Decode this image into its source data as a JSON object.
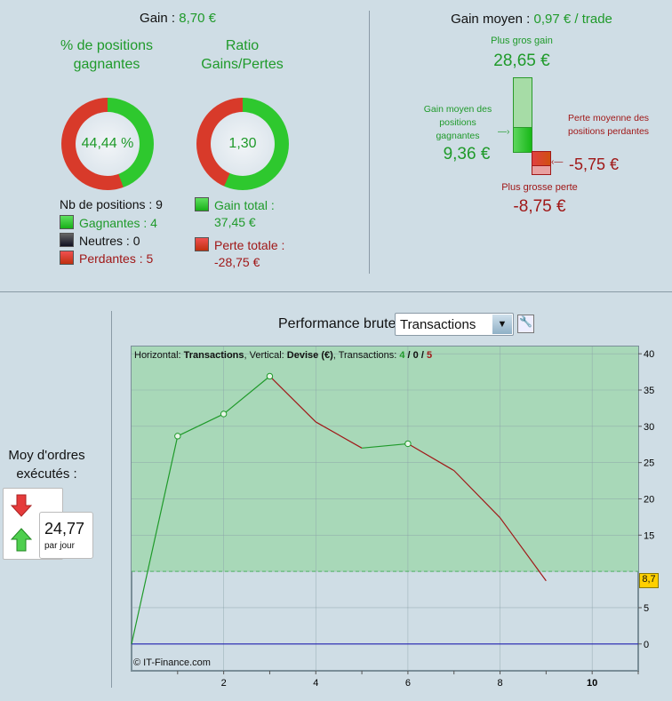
{
  "top_left": {
    "gain_label": "Gain :",
    "gain_value": "8,70 €",
    "win_pct_title": "% de positions gagnantes",
    "win_pct_value": "44,44 %",
    "win_pct_fraction": 0.4444,
    "ratio_title": "Ratio Gains/Pertes",
    "ratio_value": "1,30",
    "ratio_gain_fraction": 0.5657,
    "nb_positions": "Nb de positions : 9",
    "gagnantes": "Gagnantes : 4",
    "neutres": "Neutres : 0",
    "perdantes": "Perdantes : 5",
    "gain_total_label": "Gain total :",
    "gain_total_value": "37,45 €",
    "perte_totale_label": "Perte totale :",
    "perte_totale_value": "-28,75 €"
  },
  "top_right": {
    "gain_moyen_label": "Gain moyen :",
    "gain_moyen_value": "0,97 € / trade",
    "plus_gros_gain_label": "Plus gros gain",
    "plus_gros_gain_value": "28,65 €",
    "gain_moyen_gagnantes_label": "Gain moyen des positions gagnantes",
    "gain_moyen_gagnantes_value": "9,36 €",
    "perte_moyenne_label": "Perte moyenne des positions perdantes",
    "perte_moyenne_value": "-5,75 €",
    "plus_grosse_perte_label": "Plus grosse perte",
    "plus_grosse_perte_value": "-8,75 €"
  },
  "orders": {
    "label": "Moy d'ordres exécutés :",
    "value": "24,77",
    "unit": "par jour"
  },
  "perf": {
    "label": "Performance brute",
    "select_value": "Transactions"
  },
  "chart_data": {
    "type": "line",
    "info": {
      "h_label": "Horizontal: ",
      "h_value": "Transactions",
      "v_label": ", Vertical: ",
      "v_value": "Devise (€)",
      "t_label": ", Transactions: ",
      "wins": "4",
      "sep1": " / ",
      "neutral": "0",
      "sep2": " / ",
      "losses": "5"
    },
    "x": [
      0,
      1,
      2,
      3,
      4,
      5,
      6,
      7,
      8,
      9
    ],
    "y": [
      0,
      28.65,
      31.7,
      36.9,
      30.6,
      27.0,
      27.6,
      23.9,
      17.4,
      8.7
    ],
    "xlim": [
      0,
      11
    ],
    "ylim": [
      -3.7,
      41
    ],
    "xticks": [
      "2",
      "4",
      "6",
      "8",
      "10"
    ],
    "yticks": [
      "0",
      "5",
      "10",
      "15",
      "20",
      "25",
      "30",
      "35",
      "40"
    ],
    "threshold": 10,
    "current_label": "8,7",
    "copyright": "© IT-Finance.com",
    "colors": {
      "gain": "#1f9a2a",
      "loss": "#a01818",
      "zero": "#2020b0",
      "fill": "#a8d8b8"
    }
  }
}
